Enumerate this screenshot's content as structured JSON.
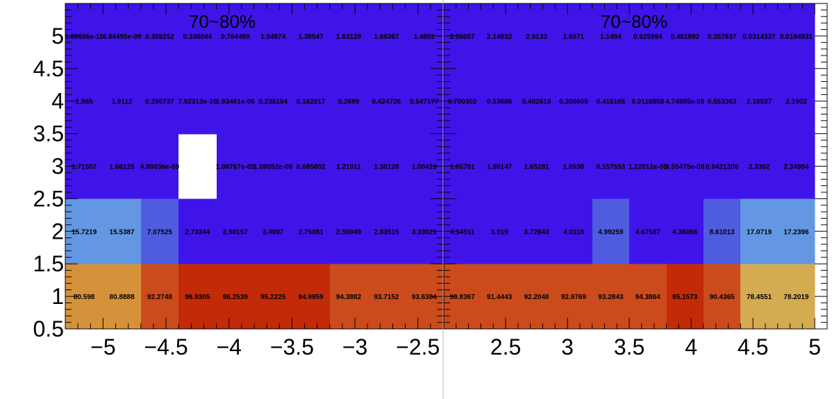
{
  "chart_data": [
    {
      "type": "heatmap",
      "title": "70~80%",
      "xlim": [
        -5.3,
        -2.3
      ],
      "ylim": [
        0.5,
        5.5
      ],
      "x_ticks": [
        "−5",
        "−4.5",
        "−4",
        "−3.5",
        "−3",
        "−2.5"
      ],
      "x_tick_values": [
        -5,
        -4.5,
        -4,
        -3.5,
        -3,
        -2.5
      ],
      "y_ticks": [
        "0.5",
        "1",
        "1.5",
        "2",
        "2.5",
        "3",
        "3.5",
        "4",
        "4.5",
        "5"
      ],
      "y_tick_values": [
        0.5,
        1,
        1.5,
        2,
        2.5,
        3,
        3.5,
        4,
        4.5,
        5
      ],
      "x_bin_edges": [
        -5.3,
        -5.0,
        -4.7,
        -4.4,
        -4.1,
        -3.8,
        -3.5,
        -3.2,
        -2.9,
        -2.6,
        -2.3
      ],
      "y_bin_edges": [
        0.5,
        1.5,
        2.5,
        3.5,
        4.5,
        5.5
      ],
      "rows": [
        {
          "y": 1,
          "labels": [
            "80.598",
            "80.8888",
            "92.2748",
            "96.9305",
            "96.2539",
            "95.2225",
            "94.9959",
            "94.3882",
            "93.7152",
            "93.6384"
          ],
          "colors": [
            "#d6923a",
            "#d6923a",
            "#cc4b1c",
            "#c32b08",
            "#c32b08",
            "#c32b08",
            "#c32b08",
            "#cc4b1c",
            "#cc4b1c",
            "#cc4b1c"
          ]
        },
        {
          "y": 2,
          "labels": [
            "15.7219",
            "15.5387",
            "7.07525",
            "2.73344",
            "2.98157",
            "3.4907",
            "2.75081",
            "2.50049",
            "2.83515",
            "3.33021"
          ],
          "colors": [
            "#6497e3",
            "#6497e3",
            "#4f5cdf",
            "#3f14e8",
            "#3f14e8",
            "#3f14e8",
            "#3f14e8",
            "#3f14e8",
            "#3f14e8",
            "#3f14e8"
          ]
        },
        {
          "y": 3,
          "labels": [
            "1.71507",
            "1.66125",
            "4.80036e-09",
            "",
            "1.06767e-05",
            "1.08052e-08",
            "0.685802",
            "1.21011",
            "1.36128",
            "1.00413"
          ],
          "colors": [
            "#3f14e8",
            "#3f14e8",
            "#3f14e8",
            "#ffffff",
            "#3f14e8",
            "#3f14e8",
            "#3f14e8",
            "#3f14e8",
            "#3f14e8",
            "#3f14e8"
          ]
        },
        {
          "y": 4,
          "labels": [
            "1.965",
            "1.9112",
            "0.290737",
            "7.92313e-10",
            "1.93461e-06",
            "0.238104",
            "0.182017",
            "0.2699",
            "0.424726",
            "0.547177"
          ],
          "colors": [
            "#3f14e8",
            "#3f14e8",
            "#3f14e8",
            "#3f14e8",
            "#3f14e8",
            "#3f14e8",
            "#3f14e8",
            "#3f14e8",
            "#3f14e8",
            "#3f14e8"
          ]
        },
        {
          "y": 5,
          "labels": [
            "5.88606e-10",
            "4.84495e-09",
            "0.359252",
            "0.336044",
            "0.764489",
            "1.04874",
            "1.38547",
            "1.63128",
            "1.66367",
            "1.4801"
          ],
          "colors": [
            "#3f14e8",
            "#3f14e8",
            "#3f14e8",
            "#3f14e8",
            "#3f14e8",
            "#3f14e8",
            "#3f14e8",
            "#3f14e8",
            "#3f14e8",
            "#3f14e8"
          ]
        }
      ]
    },
    {
      "type": "heatmap",
      "title": "70~80%",
      "xlim": [
        2.0,
        5.1
      ],
      "ylim": [
        0.5,
        5.5
      ],
      "x_ticks": [
        "2.5",
        "3",
        "3.5",
        "4",
        "4.5",
        "5"
      ],
      "x_tick_values": [
        2.5,
        3,
        3.5,
        4,
        4.5,
        5
      ],
      "y_ticks": [],
      "y_tick_values": [],
      "x_bin_edges": [
        2.0,
        2.3,
        2.6,
        2.9,
        3.2,
        3.5,
        3.8,
        4.1,
        4.4,
        4.7,
        5.0
      ],
      "y_bin_edges": [
        0.5,
        1.5,
        2.5,
        3.5,
        4.5,
        5.5
      ],
      "rows": [
        {
          "y": 1,
          "labels": [
            "90.8367",
            "91.4443",
            "92.2048",
            "92.9769",
            "93.2843",
            "94.3864",
            "95.1573",
            "90.4365",
            "78.4551",
            "78.2019"
          ],
          "colors": [
            "#cc4b1c",
            "#cc4b1c",
            "#cc4b1c",
            "#cc4b1c",
            "#cc4b1c",
            "#cc4b1c",
            "#c32b08",
            "#cc4b1c",
            "#d5ab52",
            "#d5ab52"
          ]
        },
        {
          "y": 2,
          "labels": [
            "4.54511",
            "3.919",
            "3.72643",
            "4.0118",
            "4.99259",
            "4.67587",
            "4.36066",
            "8.61013",
            "17.0719",
            "17.2396"
          ],
          "colors": [
            "#3f14e8",
            "#3f14e8",
            "#3f14e8",
            "#3f14e8",
            "#4f5cdf",
            "#3f14e8",
            "#3f14e8",
            "#4f5cdf",
            "#6497e3",
            "#6497e3"
          ]
        },
        {
          "y": 3,
          "labels": [
            "1.85781",
            "1.95147",
            "1.65281",
            "1.0536",
            "0.157553",
            "1.22012e-05",
            "3.55475e-08",
            "0.0421306",
            "2.3362",
            "2.34984"
          ],
          "colors": [
            "#3f14e8",
            "#3f14e8",
            "#3f14e8",
            "#3f14e8",
            "#3f14e8",
            "#3f14e8",
            "#3f14e8",
            "#3f14e8",
            "#3f14e8",
            "#3f14e8"
          ]
        },
        {
          "y": 4,
          "labels": [
            "0.700302",
            "0.53686",
            "0.402618",
            "0.300609",
            "0.416165",
            "0.0116858",
            "4.74985e-09",
            "0.553363",
            "2.10537",
            "2.1902"
          ],
          "colors": [
            "#3f14e8",
            "#3f14e8",
            "#3f14e8",
            "#3f14e8",
            "#3f14e8",
            "#3f14e8",
            "#3f14e8",
            "#3f14e8",
            "#3f14e8",
            "#3f14e8"
          ]
        },
        {
          "y": 5,
          "labels": [
            "2.06007",
            "2.14832",
            "2.0133",
            "1.6571",
            "1.1494",
            "0.925994",
            "0.481992",
            "0.357837",
            "0.0314337",
            "0.0184931"
          ],
          "colors": [
            "#3f14e8",
            "#3f14e8",
            "#3f14e8",
            "#3f14e8",
            "#3f14e8",
            "#3f14e8",
            "#3f14e8",
            "#3f14e8",
            "#3f14e8",
            "#3f14e8"
          ]
        }
      ]
    }
  ]
}
